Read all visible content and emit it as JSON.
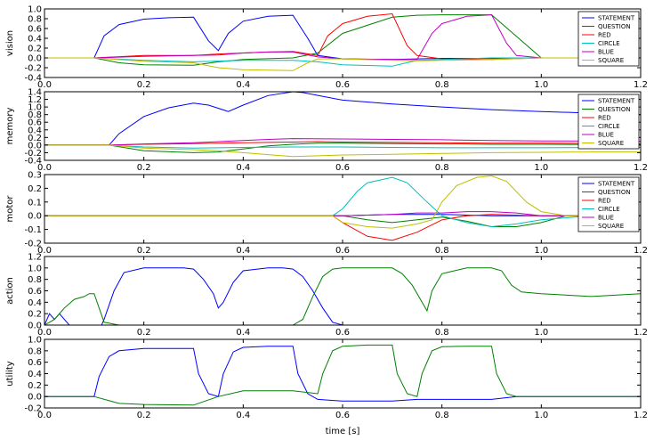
{
  "figure": {
    "xlabel": "time [s]",
    "xlim": [
      0.0,
      1.2
    ],
    "xticks": [
      "0.0",
      "0.2",
      "0.4",
      "0.6",
      "0.8",
      "1.0",
      "1.2"
    ]
  },
  "chart_data": [
    {
      "type": "line",
      "ylabel": "vision",
      "ylim": [
        -0.4,
        1.0
      ],
      "yticks": [
        "1.0",
        "0.8",
        "0.6",
        "0.4",
        "0.2",
        "0.0",
        "-0.2",
        "-0.4"
      ],
      "legend_position": "top-right",
      "series": [
        {
          "name": "STATEMENT",
          "color": "#0000ff",
          "x": [
            0,
            0.1,
            0.12,
            0.15,
            0.2,
            0.25,
            0.3,
            0.33,
            0.35,
            0.37,
            0.4,
            0.45,
            0.5,
            0.53,
            0.55,
            0.6,
            0.7,
            0.75,
            0.8,
            0.9,
            1.0,
            1.1,
            1.2
          ],
          "y": [
            0,
            0,
            0.45,
            0.68,
            0.79,
            0.82,
            0.83,
            0.35,
            0.15,
            0.5,
            0.75,
            0.85,
            0.87,
            0.4,
            0.05,
            -0.02,
            -0.03,
            -0.02,
            -0.01,
            -0.01,
            0,
            0,
            0
          ]
        },
        {
          "name": "QUESTION",
          "color": "#008000",
          "x": [
            0,
            0.1,
            0.15,
            0.2,
            0.3,
            0.35,
            0.4,
            0.5,
            0.55,
            0.6,
            0.7,
            0.75,
            0.8,
            0.9,
            1.0,
            1.1,
            1.2
          ],
          "y": [
            0,
            0,
            -0.1,
            -0.14,
            -0.15,
            -0.08,
            -0.03,
            0,
            0.1,
            0.5,
            0.83,
            0.87,
            0.88,
            0.88,
            0,
            0,
            0
          ]
        },
        {
          "name": "RED",
          "color": "#ff0000",
          "x": [
            0,
            0.1,
            0.2,
            0.3,
            0.35,
            0.4,
            0.45,
            0.5,
            0.55,
            0.57,
            0.6,
            0.65,
            0.7,
            0.73,
            0.75,
            0.8,
            0.9,
            1.0,
            1.2
          ],
          "y": [
            0,
            0,
            0.05,
            0.05,
            0.08,
            0.1,
            0.12,
            0.13,
            0.05,
            0.45,
            0.7,
            0.85,
            0.9,
            0.25,
            0.05,
            -0.02,
            -0.03,
            0,
            0
          ]
        },
        {
          "name": "CIRCLE",
          "color": "#00bfbf",
          "x": [
            0,
            0.1,
            0.2,
            0.3,
            0.4,
            0.5,
            0.55,
            0.6,
            0.7,
            0.72,
            0.75,
            0.8,
            0.9,
            1.0,
            1.2
          ],
          "y": [
            0,
            0,
            -0.05,
            -0.08,
            -0.05,
            -0.05,
            -0.08,
            -0.14,
            -0.17,
            -0.12,
            -0.05,
            -0.03,
            0,
            0,
            0
          ]
        },
        {
          "name": "BLUE",
          "color": "#bf00bf",
          "x": [
            0,
            0.1,
            0.2,
            0.3,
            0.35,
            0.4,
            0.45,
            0.5,
            0.55,
            0.6,
            0.7,
            0.75,
            0.78,
            0.8,
            0.85,
            0.9,
            0.93,
            0.95,
            1.0,
            1.2
          ],
          "y": [
            0,
            0,
            0.03,
            0.05,
            0.06,
            0.1,
            0.12,
            0.12,
            0.02,
            -0.02,
            -0.03,
            -0.03,
            0.5,
            0.7,
            0.85,
            0.88,
            0.3,
            0.05,
            0,
            0
          ]
        },
        {
          "name": "SQUARE",
          "color": "#bfbf00",
          "x": [
            0,
            0.1,
            0.2,
            0.3,
            0.35,
            0.4,
            0.5,
            0.53,
            0.55,
            0.6,
            0.7,
            0.75,
            0.8,
            0.9,
            1.0,
            1.1,
            1.2
          ],
          "y": [
            0,
            0,
            -0.07,
            -0.1,
            -0.2,
            -0.24,
            -0.26,
            -0.1,
            -0.02,
            -0.02,
            -0.05,
            -0.06,
            -0.05,
            -0.03,
            0,
            0,
            0
          ]
        }
      ]
    },
    {
      "type": "line",
      "ylabel": "memory",
      "ylim": [
        -0.4,
        1.4
      ],
      "yticks": [
        "1.4",
        "1.2",
        "1.0",
        "0.8",
        "0.6",
        "0.4",
        "0.2",
        "0.0",
        "-0.2",
        "-0.4"
      ],
      "legend_position": "top-right",
      "series": [
        {
          "name": "STATEMENT",
          "color": "#0000ff",
          "x": [
            0,
            0.13,
            0.15,
            0.2,
            0.25,
            0.3,
            0.33,
            0.37,
            0.4,
            0.45,
            0.5,
            0.52,
            0.6,
            0.7,
            0.8,
            0.9,
            1.0,
            1.1,
            1.2
          ],
          "y": [
            0,
            0,
            0.3,
            0.75,
            0.98,
            1.1,
            1.05,
            0.88,
            1.05,
            1.3,
            1.4,
            1.38,
            1.18,
            1.08,
            1.0,
            0.93,
            0.88,
            0.84,
            0.8
          ]
        },
        {
          "name": "QUESTION",
          "color": "#008000",
          "x": [
            0,
            0.13,
            0.2,
            0.3,
            0.35,
            0.4,
            0.45,
            0.5,
            0.55,
            0.6,
            0.7,
            0.8,
            0.9,
            1.0,
            1.2
          ],
          "y": [
            0,
            0,
            -0.15,
            -0.2,
            -0.18,
            -0.1,
            -0.02,
            0.02,
            0.05,
            0.05,
            0.04,
            0.03,
            0.02,
            0.02,
            0.01
          ]
        },
        {
          "name": "RED",
          "color": "#ff0000",
          "x": [
            0,
            0.13,
            0.2,
            0.3,
            0.4,
            0.5,
            0.55,
            0.6,
            0.7,
            0.8,
            0.9,
            1.0,
            1.2
          ],
          "y": [
            0,
            0,
            0.02,
            0.04,
            0.06,
            0.08,
            0.09,
            0.08,
            0.07,
            0.06,
            0.05,
            0.05,
            0.04
          ]
        },
        {
          "name": "CIRCLE",
          "color": "#00bfbf",
          "x": [
            0,
            0.13,
            0.2,
            0.3,
            0.4,
            0.5,
            0.6,
            0.7,
            0.8,
            0.9,
            1.0,
            1.2
          ],
          "y": [
            0,
            0,
            -0.05,
            -0.08,
            -0.06,
            -0.05,
            -0.05,
            -0.06,
            -0.07,
            -0.07,
            -0.07,
            -0.06
          ]
        },
        {
          "name": "BLUE",
          "color": "#bf00bf",
          "x": [
            0,
            0.13,
            0.2,
            0.3,
            0.4,
            0.45,
            0.5,
            0.6,
            0.7,
            0.8,
            0.9,
            1.0,
            1.2
          ],
          "y": [
            0,
            0,
            0.03,
            0.06,
            0.12,
            0.15,
            0.17,
            0.16,
            0.15,
            0.14,
            0.12,
            0.11,
            0.1
          ]
        },
        {
          "name": "SQUARE",
          "color": "#bfbf00",
          "x": [
            0,
            0.13,
            0.2,
            0.3,
            0.35,
            0.4,
            0.45,
            0.5,
            0.55,
            0.6,
            0.7,
            0.8,
            0.9,
            1.0,
            1.1,
            1.2
          ],
          "y": [
            0,
            0,
            -0.08,
            -0.12,
            -0.15,
            -0.2,
            -0.25,
            -0.3,
            -0.28,
            -0.26,
            -0.24,
            -0.22,
            -0.2,
            -0.19,
            -0.18,
            -0.18
          ]
        }
      ]
    },
    {
      "type": "line",
      "ylabel": "motor",
      "ylim": [
        -0.2,
        0.3
      ],
      "yticks": [
        "0.3",
        "0.2",
        "0.1",
        "0.0",
        "-0.1",
        "-0.2"
      ],
      "legend_position": "top-right",
      "series": [
        {
          "name": "STATEMENT",
          "color": "#0000ff",
          "x": [
            0,
            0.6,
            0.7,
            0.8,
            0.9,
            1.0,
            1.2
          ],
          "y": [
            0,
            0,
            0.01,
            0.01,
            0,
            0,
            0
          ]
        },
        {
          "name": "QUESTION",
          "color": "#008000",
          "x": [
            0,
            0.6,
            0.65,
            0.7,
            0.75,
            0.8,
            0.85,
            0.9,
            0.95,
            1.0,
            1.05,
            1.1,
            1.2
          ],
          "y": [
            0,
            0,
            -0.03,
            -0.05,
            -0.03,
            -0.01,
            -0.04,
            -0.08,
            -0.08,
            -0.05,
            0,
            0,
            0
          ]
        },
        {
          "name": "RED",
          "color": "#ff0000",
          "x": [
            0,
            0.58,
            0.6,
            0.65,
            0.7,
            0.75,
            0.8,
            0.85,
            0.9,
            1.0,
            1.1,
            1.2
          ],
          "y": [
            0,
            0,
            -0.05,
            -0.15,
            -0.18,
            -0.12,
            -0.03,
            0,
            0.01,
            0,
            0,
            0
          ]
        },
        {
          "name": "CIRCLE",
          "color": "#00bfbf",
          "x": [
            0,
            0.58,
            0.6,
            0.63,
            0.65,
            0.7,
            0.73,
            0.77,
            0.8,
            0.85,
            0.9,
            0.95,
            1.0,
            1.1,
            1.2
          ],
          "y": [
            0,
            0,
            0.05,
            0.18,
            0.24,
            0.28,
            0.24,
            0.1,
            0,
            -0.05,
            -0.08,
            -0.06,
            -0.03,
            0,
            0
          ]
        },
        {
          "name": "BLUE",
          "color": "#bf00bf",
          "x": [
            0,
            0.6,
            0.7,
            0.75,
            0.8,
            0.85,
            0.9,
            0.95,
            1.0,
            1.1,
            1.2
          ],
          "y": [
            0,
            0,
            0.01,
            0.02,
            0.02,
            0.03,
            0.03,
            0.02,
            0,
            0,
            0
          ]
        },
        {
          "name": "SQUARE",
          "color": "#bfbf00",
          "x": [
            0,
            0.58,
            0.6,
            0.65,
            0.7,
            0.75,
            0.78,
            0.8,
            0.83,
            0.87,
            0.9,
            0.93,
            0.97,
            1.0,
            1.05,
            1.1,
            1.2
          ],
          "y": [
            0,
            0,
            -0.05,
            -0.08,
            -0.09,
            -0.06,
            -0.03,
            0.1,
            0.22,
            0.28,
            0.29,
            0.25,
            0.1,
            0.03,
            0,
            0,
            0
          ]
        }
      ]
    },
    {
      "type": "line",
      "ylabel": "action",
      "ylim": [
        0.0,
        1.2
      ],
      "yticks": [
        "1.2",
        "1.0",
        "0.8",
        "0.6",
        "0.4",
        "0.2",
        "0.0"
      ],
      "series": [
        {
          "name": "",
          "color": "#0000ff",
          "x": [
            0,
            0.01,
            0.02,
            0.03,
            0.04,
            0.05,
            0.06,
            0.08,
            0.1,
            0.115,
            0.12,
            0.14,
            0.16,
            0.2,
            0.25,
            0.28,
            0.3,
            0.32,
            0.34,
            0.35,
            0.36,
            0.38,
            0.4,
            0.45,
            0.48,
            0.5,
            0.52,
            0.54,
            0.56,
            0.58,
            0.6,
            0.7,
            1.2
          ],
          "y": [
            0,
            0.2,
            0.1,
            0.2,
            0.1,
            0,
            0,
            0,
            0,
            0,
            0.1,
            0.6,
            0.92,
            1.0,
            1.0,
            1.0,
            0.98,
            0.8,
            0.55,
            0.3,
            0.4,
            0.75,
            0.95,
            1.0,
            1.0,
            0.98,
            0.85,
            0.6,
            0.3,
            0.05,
            0,
            0,
            0
          ]
        },
        {
          "name": "",
          "color": "#008000",
          "x": [
            0,
            0.02,
            0.04,
            0.06,
            0.08,
            0.09,
            0.1,
            0.11,
            0.12,
            0.15,
            0.3,
            0.5,
            0.52,
            0.54,
            0.56,
            0.58,
            0.6,
            0.65,
            0.7,
            0.72,
            0.74,
            0.76,
            0.77,
            0.78,
            0.8,
            0.85,
            0.9,
            0.92,
            0.94,
            0.96,
            1.0,
            1.1,
            1.2
          ],
          "y": [
            0,
            0.1,
            0.3,
            0.45,
            0.5,
            0.55,
            0.55,
            0.3,
            0.05,
            0,
            0,
            0,
            0.1,
            0.5,
            0.85,
            0.98,
            1.0,
            1.0,
            1.0,
            0.9,
            0.7,
            0.4,
            0.25,
            0.6,
            0.9,
            1.0,
            1.0,
            0.95,
            0.7,
            0.58,
            0.55,
            0.5,
            0.55
          ]
        }
      ]
    },
    {
      "type": "line",
      "ylabel": "utility",
      "ylim": [
        -0.2,
        1.0
      ],
      "yticks": [
        "1.0",
        "0.8",
        "0.6",
        "0.4",
        "0.2",
        "0.0",
        "-0.2"
      ],
      "series": [
        {
          "name": "",
          "color": "#0000ff",
          "x": [
            0,
            0.1,
            0.11,
            0.13,
            0.15,
            0.2,
            0.3,
            0.31,
            0.33,
            0.35,
            0.36,
            0.38,
            0.4,
            0.45,
            0.5,
            0.51,
            0.53,
            0.55,
            0.6,
            0.7,
            0.75,
            0.8,
            0.9,
            0.95,
            1.0,
            1.2
          ],
          "y": [
            0,
            0,
            0.35,
            0.7,
            0.8,
            0.84,
            0.84,
            0.4,
            0.05,
            0,
            0.4,
            0.78,
            0.86,
            0.88,
            0.88,
            0.4,
            0.05,
            -0.05,
            -0.08,
            -0.08,
            -0.05,
            -0.05,
            -0.05,
            0,
            0,
            0
          ]
        },
        {
          "name": "",
          "color": "#008000",
          "x": [
            0,
            0.1,
            0.15,
            0.2,
            0.3,
            0.35,
            0.4,
            0.45,
            0.5,
            0.55,
            0.56,
            0.58,
            0.6,
            0.65,
            0.7,
            0.71,
            0.73,
            0.75,
            0.76,
            0.78,
            0.8,
            0.85,
            0.9,
            0.91,
            0.93,
            0.95,
            1.0,
            1.2
          ],
          "y": [
            0,
            0,
            -0.12,
            -0.14,
            -0.15,
            0,
            0.1,
            0.1,
            0.1,
            0.05,
            0.4,
            0.8,
            0.88,
            0.9,
            0.9,
            0.4,
            0.05,
            0,
            0.4,
            0.8,
            0.87,
            0.88,
            0.88,
            0.4,
            0.05,
            0,
            0,
            0
          ]
        }
      ]
    }
  ]
}
